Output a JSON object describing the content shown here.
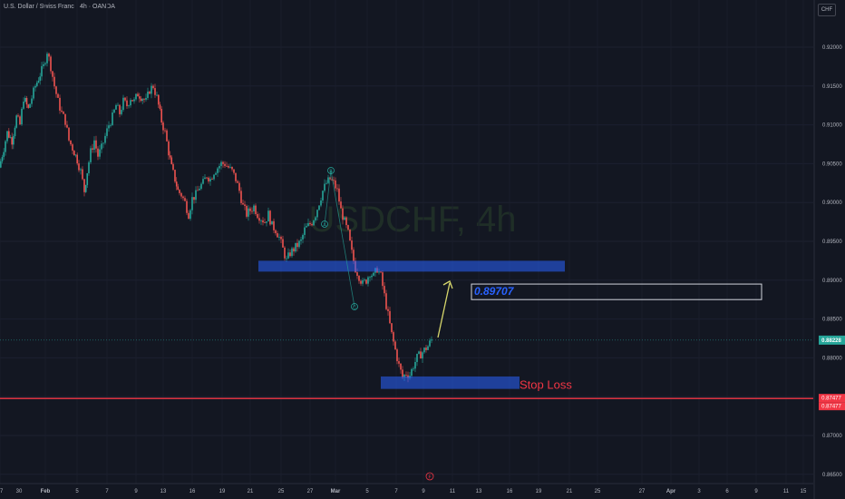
{
  "header": {
    "symbol_title": "U.S. Dollar / Swiss Franc · 4h · OANDA",
    "currency_button": "CHF"
  },
  "watermark": "USDCHF, 4h",
  "colors": {
    "background": "#131722",
    "up_candle": "#26a69a",
    "down_candle": "#ef5350",
    "zone_fill": "#2962ff",
    "stop_line": "#f23645",
    "target_text": "#2962ff",
    "arrow": "#d6d66b",
    "wave_line": "#26a69a"
  },
  "chart_data": {
    "type": "candlestick",
    "timeframe": "4h",
    "y_axis": {
      "ticks": [
        "0.92000",
        "0.91500",
        "0.91000",
        "0.90500",
        "0.90000",
        "0.89500",
        "0.89000",
        "0.88500",
        "0.88000",
        "0.87500",
        "0.87000",
        "0.86500"
      ],
      "range": [
        0.8645,
        0.9235
      ]
    },
    "x_axis": {
      "ticks": [
        "30",
        "Feb",
        "5",
        "7",
        "9",
        "13",
        "16",
        "19",
        "21",
        "25",
        "27",
        "Mar",
        "5",
        "7",
        "9",
        "11",
        "13",
        "16",
        "19",
        "21",
        "25",
        "27",
        "Apr",
        "3",
        "6",
        "9",
        "11",
        "15",
        "17"
      ]
    },
    "price_labels": {
      "current": "0.88228",
      "stop_1": "0.87477",
      "stop_2": "0.87477"
    },
    "annotations": {
      "target_box": "0.89707",
      "stop_loss": "Stop Loss",
      "wave_labels": [
        "A",
        "B",
        "C"
      ],
      "event_marker": "F"
    },
    "levels": {
      "resistance_zone": [
        0.8911,
        0.8925
      ],
      "support_zone": [
        0.876,
        0.8776
      ],
      "stop_loss": 0.87477,
      "current": 0.88228,
      "target_box_range": [
        0.8875,
        0.8895
      ]
    },
    "candle_path": [
      [
        0,
        0.9045
      ],
      [
        5,
        0.907
      ],
      [
        9,
        0.909
      ],
      [
        14,
        0.908
      ],
      [
        19,
        0.911
      ],
      [
        23,
        0.91
      ],
      [
        27,
        0.9135
      ],
      [
        32,
        0.912
      ],
      [
        36,
        0.9135
      ],
      [
        40,
        0.915
      ],
      [
        45,
        0.9165
      ],
      [
        49,
        0.9175
      ],
      [
        53,
        0.9195
      ],
      [
        57,
        0.9175
      ],
      [
        61,
        0.915
      ],
      [
        65,
        0.913
      ],
      [
        69,
        0.9115
      ],
      [
        73,
        0.9105
      ],
      [
        77,
        0.908
      ],
      [
        81,
        0.907
      ],
      [
        86,
        0.9055
      ],
      [
        90,
        0.904
      ],
      [
        94,
        0.9015
      ],
      [
        97,
        0.904
      ],
      [
        101,
        0.9065
      ],
      [
        105,
        0.908
      ],
      [
        109,
        0.906
      ],
      [
        113,
        0.907
      ],
      [
        117,
        0.9085
      ],
      [
        121,
        0.91
      ],
      [
        125,
        0.911
      ],
      [
        129,
        0.9125
      ],
      [
        133,
        0.9115
      ],
      [
        137,
        0.913
      ],
      [
        141,
        0.9125
      ],
      [
        145,
        0.9135
      ],
      [
        149,
        0.913
      ],
      [
        153,
        0.914
      ],
      [
        158,
        0.9135
      ],
      [
        162,
        0.913
      ],
      [
        166,
        0.9145
      ],
      [
        170,
        0.915
      ],
      [
        174,
        0.9135
      ],
      [
        179,
        0.9105
      ],
      [
        183,
        0.909
      ],
      [
        187,
        0.9065
      ],
      [
        190,
        0.9045
      ],
      [
        194,
        0.903
      ],
      [
        197,
        0.9015
      ],
      [
        201,
        0.901
      ],
      [
        205,
        0.9
      ],
      [
        209,
        0.8985
      ],
      [
        213,
        0.9005
      ],
      [
        217,
        0.901
      ],
      [
        221,
        0.902
      ],
      [
        225,
        0.9025
      ],
      [
        229,
        0.9035
      ],
      [
        233,
        0.903
      ],
      [
        237,
        0.904
      ],
      [
        241,
        0.9045
      ],
      [
        245,
        0.905
      ],
      [
        249,
        0.905
      ],
      [
        253,
        0.9045
      ],
      [
        257,
        0.904
      ],
      [
        261,
        0.903
      ],
      [
        265,
        0.9015
      ],
      [
        269,
        0.8995
      ],
      [
        273,
        0.8985
      ],
      [
        277,
        0.899
      ],
      [
        281,
        0.8995
      ],
      [
        285,
        0.8985
      ],
      [
        289,
        0.898
      ],
      [
        293,
        0.8975
      ],
      [
        297,
        0.8985
      ],
      [
        301,
        0.897
      ],
      [
        305,
        0.8965
      ],
      [
        309,
        0.8955
      ],
      [
        313,
        0.894
      ],
      [
        317,
        0.8925
      ],
      [
        321,
        0.8935
      ],
      [
        325,
        0.894
      ],
      [
        329,
        0.8945
      ],
      [
        333,
        0.895
      ],
      [
        337,
        0.8965
      ],
      [
        341,
        0.897
      ],
      [
        345,
        0.8975
      ],
      [
        349,
        0.8985
      ],
      [
        353,
        0.9
      ],
      [
        357,
        0.9015
      ],
      [
        361,
        0.9025
      ],
      [
        365,
        0.903
      ],
      [
        369,
        0.9025
      ],
      [
        373,
        0.9015
      ],
      [
        377,
        0.899
      ],
      [
        381,
        0.8975
      ],
      [
        385,
        0.896
      ],
      [
        389,
        0.8935
      ],
      [
        393,
        0.8915
      ],
      [
        397,
        0.8905
      ],
      [
        401,
        0.8895
      ],
      [
        405,
        0.89
      ],
      [
        409,
        0.891
      ],
      [
        413,
        0.8905
      ],
      [
        417,
        0.8915
      ],
      [
        421,
        0.8905
      ],
      [
        425,
        0.888
      ],
      [
        429,
        0.8855
      ],
      [
        433,
        0.883
      ],
      [
        437,
        0.881
      ],
      [
        441,
        0.879
      ],
      [
        445,
        0.8775
      ],
      [
        449,
        0.878
      ],
      [
        453,
        0.8778
      ],
      [
        457,
        0.879
      ],
      [
        461,
        0.88
      ],
      [
        465,
        0.8805
      ],
      [
        469,
        0.881
      ],
      [
        473,
        0.8815
      ],
      [
        477,
        0.8823
      ]
    ]
  }
}
